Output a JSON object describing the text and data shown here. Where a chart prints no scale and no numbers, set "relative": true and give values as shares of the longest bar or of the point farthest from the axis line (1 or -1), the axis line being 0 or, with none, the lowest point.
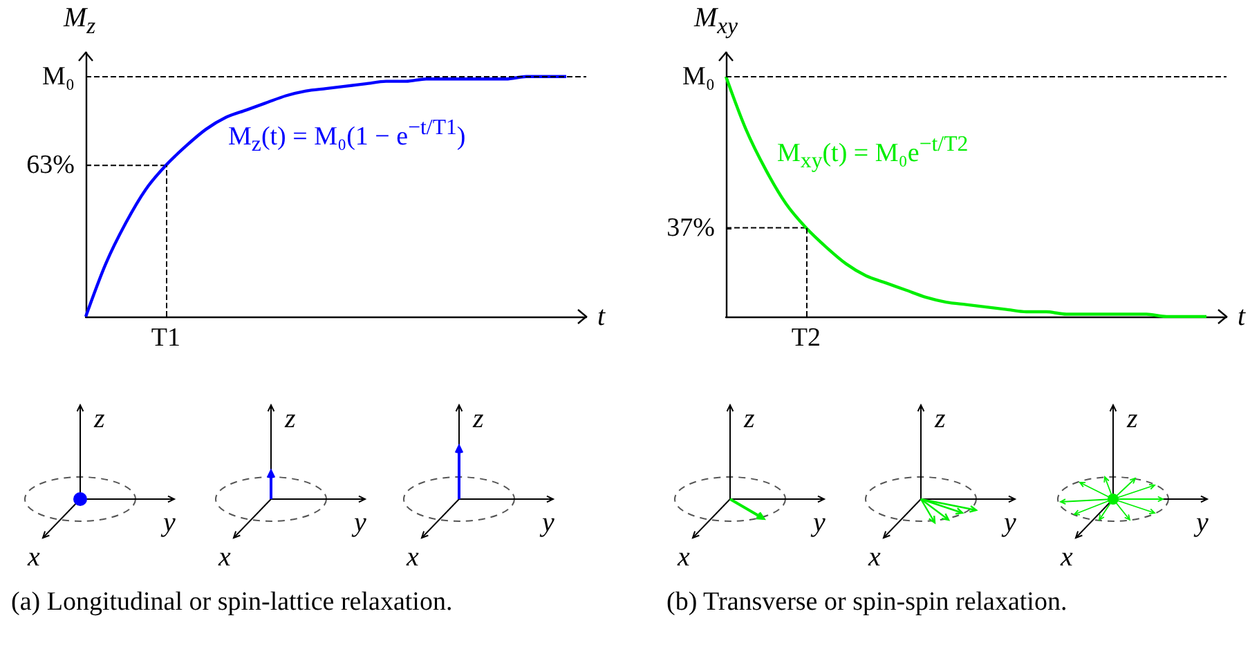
{
  "chart_data": [
    {
      "type": "line",
      "ylabel": "M$_{z}$",
      "xlabel": "t",
      "relative": true,
      "categories": [
        null,
        null,
        null,
        null,
        null,
        null,
        null,
        null,
        null,
        null,
        null,
        null,
        null,
        null,
        null,
        null,
        null,
        null,
        null,
        null,
        null,
        null,
        null,
        null,
        null,
        null
      ],
      "series": [
        {
          "color": "#0000ff",
          "values": [
            0,
            0.22,
            0.39,
            0.53,
            0.63,
            0.71,
            0.78,
            0.83,
            0.86,
            0.89,
            0.92,
            0.94,
            0.95,
            0.96,
            0.97,
            0.98,
            0.98,
            0.99,
            0.99,
            0.99,
            0.99,
            0.99,
            1.0,
            1.0,
            1.0,
            null
          ]
        },
        {
          "color": "#000000",
          "values": [
            0.63,
            0.63,
            0.63,
            0.63,
            0.63,
            null,
            null,
            null,
            null,
            null,
            null,
            null,
            null,
            null,
            null,
            null,
            null,
            null,
            null,
            null,
            null,
            null,
            null,
            null,
            null,
            null
          ],
          "line_style": "dashed"
        }
      ],
      "ref_lines": [
        {
          "axis": "y",
          "value": 1,
          "color": "#000000",
          "line_style": "dashed"
        }
      ],
      "annotations": [
        "M$_{z}$(t) = M₀(1 − e$^{−t/T1}$)",
        "(a) Longitudinal or spin-lattice relaxation.",
        "x",
        "y",
        "z",
        "T1",
        "63%",
        "M₀"
      ],
      "grid": false
    },
    {
      "type": "line",
      "ylabel": "M$_{xy}$",
      "xlabel": "t",
      "relative": true,
      "categories": [
        null,
        null,
        null,
        null,
        null,
        null,
        null,
        null,
        null,
        null,
        null,
        null,
        null,
        null,
        null,
        null,
        null,
        null,
        null,
        null,
        null,
        null,
        null,
        null,
        null,
        null
      ],
      "series": [
        {
          "color": "#00ee00",
          "values": [
            1,
            0.78,
            0.61,
            0.47,
            0.37,
            0.29,
            0.22,
            0.17,
            0.14,
            0.11,
            0.08,
            0.06,
            0.05,
            0.04,
            0.03,
            0.02,
            0.02,
            0.01,
            0.01,
            0.01,
            0.01,
            0.01,
            0,
            0,
            0,
            null
          ]
        },
        {
          "color": "#000000",
          "values": [
            0.37,
            0.37,
            0.37,
            0.37,
            0.37,
            null,
            null,
            null,
            null,
            null,
            null,
            null,
            null,
            null,
            null,
            null,
            null,
            null,
            null,
            null,
            null,
            null,
            null,
            null,
            null,
            null
          ],
          "line_style": "dashed"
        }
      ],
      "ref_lines": [
        {
          "axis": "y",
          "value": 1,
          "color": "#000000",
          "line_style": "dashed"
        }
      ],
      "annotations": [
        "M$_{xy}$(t) = M₀e$^{−t/T2}$",
        "(b) Transverse or spin-spin relaxation.",
        "x",
        "y",
        "z",
        "T2",
        "37%",
        "M₀"
      ],
      "grid": false
    }
  ]
}
